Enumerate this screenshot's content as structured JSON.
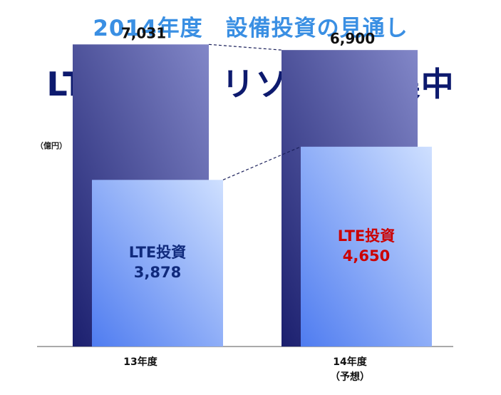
{
  "header": {
    "subtitle": "2014年度　設備投資の見通し",
    "title": "LTE強化へ リソースを集中"
  },
  "colors": {
    "title": "#0d1a6e",
    "subtitle": "#3a8fe3",
    "total_bar_dark": "#1b1f6e",
    "total_bar_light": "#8287c8",
    "lte_bar_dark": "#4f7cf0",
    "lte_bar_light": "#cfe0ff",
    "lte_label_13": "#102a7c",
    "lte_label_14": "#cc0000"
  },
  "chart_data": {
    "type": "bar",
    "unit": "（億円）",
    "categories": [
      "13年度",
      "14年度"
    ],
    "category_notes": [
      "",
      "（予想）"
    ],
    "ylim": [
      0,
      7600
    ],
    "grid": false,
    "series": [
      {
        "values": [
          7031,
          6900
        ],
        "value_labels": [
          "7,031",
          "6,900"
        ]
      },
      {
        "name": "LTE投資",
        "values": [
          3878,
          4650
        ],
        "value_labels": [
          "3,878",
          "4,650"
        ]
      }
    ]
  }
}
